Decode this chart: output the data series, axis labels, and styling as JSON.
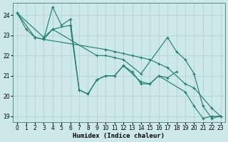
{
  "xlabel": "Humidex (Indice chaleur)",
  "xlim": [
    -0.5,
    23.5
  ],
  "ylim": [
    18.7,
    24.6
  ],
  "yticks": [
    19,
    20,
    21,
    22,
    23,
    24
  ],
  "xticks": [
    0,
    1,
    2,
    3,
    4,
    5,
    6,
    7,
    8,
    9,
    10,
    11,
    12,
    13,
    14,
    15,
    16,
    17,
    18,
    19,
    20,
    21,
    22,
    23
  ],
  "bg_color": "#cde8e8",
  "grid_color": "#b8d4d4",
  "line_color": "#1a7a6e",
  "series": [
    {
      "x": [
        0,
        1,
        2,
        3,
        4,
        5,
        6,
        7,
        8,
        9,
        10,
        11,
        12,
        13,
        14,
        15,
        16,
        17,
        18
      ],
      "y": [
        24.1,
        23.3,
        22.9,
        22.8,
        24.4,
        23.5,
        23.8,
        20.3,
        20.1,
        20.8,
        21.0,
        21.0,
        21.5,
        21.2,
        20.6,
        20.6,
        21.0,
        20.9,
        21.2
      ]
    },
    {
      "x": [
        0,
        2,
        3,
        10,
        11,
        12,
        13,
        14,
        15,
        16,
        17,
        19,
        20,
        22,
        23
      ],
      "y": [
        24.1,
        22.9,
        22.8,
        22.3,
        22.2,
        22.1,
        22.0,
        21.9,
        21.8,
        21.6,
        21.4,
        20.6,
        20.4,
        19.4,
        19.0
      ]
    },
    {
      "x": [
        0,
        3,
        4,
        9,
        10,
        11,
        12,
        14,
        17,
        18,
        19,
        20,
        21,
        22,
        23
      ],
      "y": [
        24.1,
        22.9,
        23.3,
        22.0,
        22.0,
        21.9,
        21.8,
        21.1,
        22.9,
        22.2,
        21.8,
        21.1,
        19.5,
        18.9,
        19.0
      ]
    },
    {
      "x": [
        3,
        4,
        6,
        7,
        8,
        9,
        10,
        11,
        12,
        14,
        15,
        16,
        19,
        20,
        21,
        22,
        23
      ],
      "y": [
        22.8,
        23.3,
        23.5,
        20.3,
        20.1,
        20.8,
        21.0,
        21.0,
        21.5,
        20.7,
        20.6,
        21.0,
        20.2,
        19.5,
        18.9,
        19.0,
        19.0
      ]
    }
  ]
}
